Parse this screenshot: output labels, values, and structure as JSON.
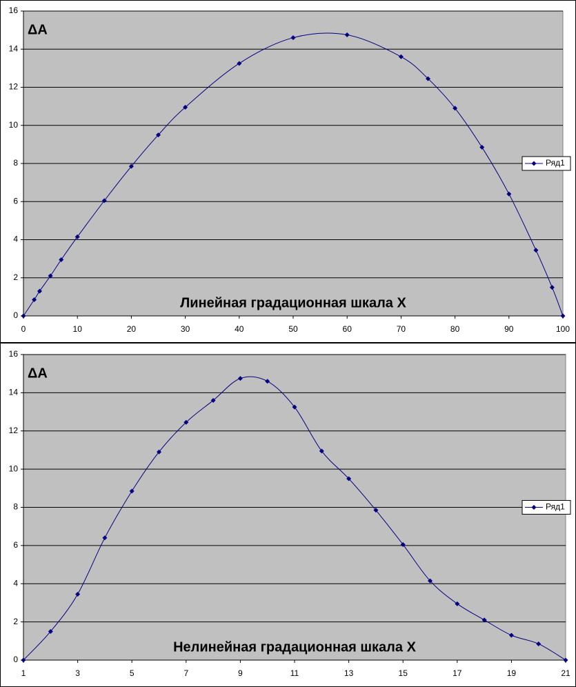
{
  "chart_data": [
    {
      "type": "line",
      "ylabel": "ΔA",
      "xlabel": "Линейная градационная шкала X",
      "x": [
        0,
        2,
        3,
        5,
        7,
        10,
        15,
        20,
        25,
        30,
        40,
        50,
        60,
        70,
        75,
        80,
        85,
        90,
        95,
        98,
        100
      ],
      "series": [
        {
          "name": "Ряд1",
          "color": "#000080",
          "values": [
            0,
            0.85,
            1.3,
            2.1,
            2.95,
            4.15,
            6.05,
            7.85,
            9.5,
            10.95,
            13.25,
            14.6,
            14.75,
            13.6,
            12.45,
            10.9,
            8.85,
            6.4,
            3.45,
            1.5,
            0
          ]
        }
      ],
      "xlim": [
        0,
        100
      ],
      "xticks": [
        0,
        10,
        20,
        30,
        40,
        50,
        60,
        70,
        80,
        90,
        100
      ],
      "ylim": [
        0,
        16
      ],
      "yticks": [
        0,
        2,
        4,
        6,
        8,
        10,
        12,
        14,
        16
      ],
      "grid": true,
      "legend": "right"
    },
    {
      "type": "line",
      "ylabel": "ΔA",
      "xlabel": "Нелинейная градационная шкала X",
      "x": [
        1,
        2,
        3,
        4,
        5,
        6,
        7,
        8,
        9,
        10,
        11,
        12,
        13,
        14,
        15,
        16,
        17,
        18,
        19,
        20,
        21
      ],
      "series": [
        {
          "name": "Ряд1",
          "color": "#000080",
          "values": [
            0,
            1.5,
            3.45,
            6.4,
            8.85,
            10.9,
            12.45,
            13.6,
            14.75,
            14.6,
            13.25,
            10.95,
            9.5,
            7.85,
            6.05,
            4.15,
            2.95,
            2.1,
            1.3,
            0.85,
            0
          ]
        }
      ],
      "xlim": [
        1,
        21
      ],
      "xticks": [
        1,
        3,
        5,
        7,
        9,
        11,
        13,
        15,
        17,
        19,
        21
      ],
      "ylim": [
        0,
        16
      ],
      "yticks": [
        0,
        2,
        4,
        6,
        8,
        10,
        12,
        14,
        16
      ],
      "grid": true,
      "legend": "right"
    }
  ]
}
